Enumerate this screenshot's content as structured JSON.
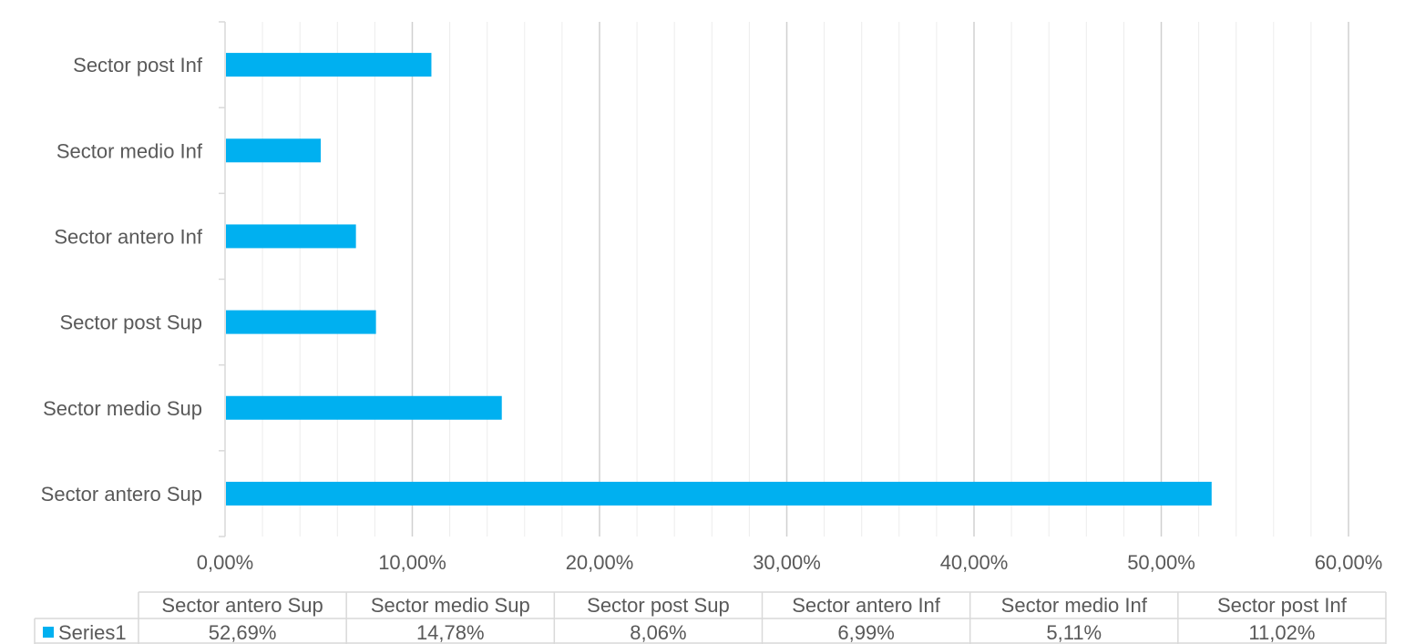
{
  "chart_data": {
    "type": "bar",
    "orientation": "horizontal",
    "categories": [
      "Sector antero Sup",
      "Sector medio Sup",
      "Sector post Sup",
      "Sector antero Inf",
      "Sector medio Inf",
      "Sector post Inf"
    ],
    "series": [
      {
        "name": "Series1",
        "values": [
          52.69,
          14.78,
          8.06,
          6.99,
          5.11,
          11.02
        ],
        "value_labels": [
          "52,69%",
          "14,78%",
          "8,06%",
          "6,99%",
          "5,11%",
          "11,02%"
        ],
        "color": "#00B0F0"
      }
    ],
    "x_ticks": [
      "0,00%",
      "10,00%",
      "20,00%",
      "30,00%",
      "40,00%",
      "50,00%",
      "60,00%"
    ],
    "xlim": [
      0,
      60
    ],
    "major_step": 10,
    "minor_step": 2,
    "grid": true,
    "legend": "data-table-bottom",
    "title": "",
    "xlabel": "",
    "ylabel": ""
  }
}
